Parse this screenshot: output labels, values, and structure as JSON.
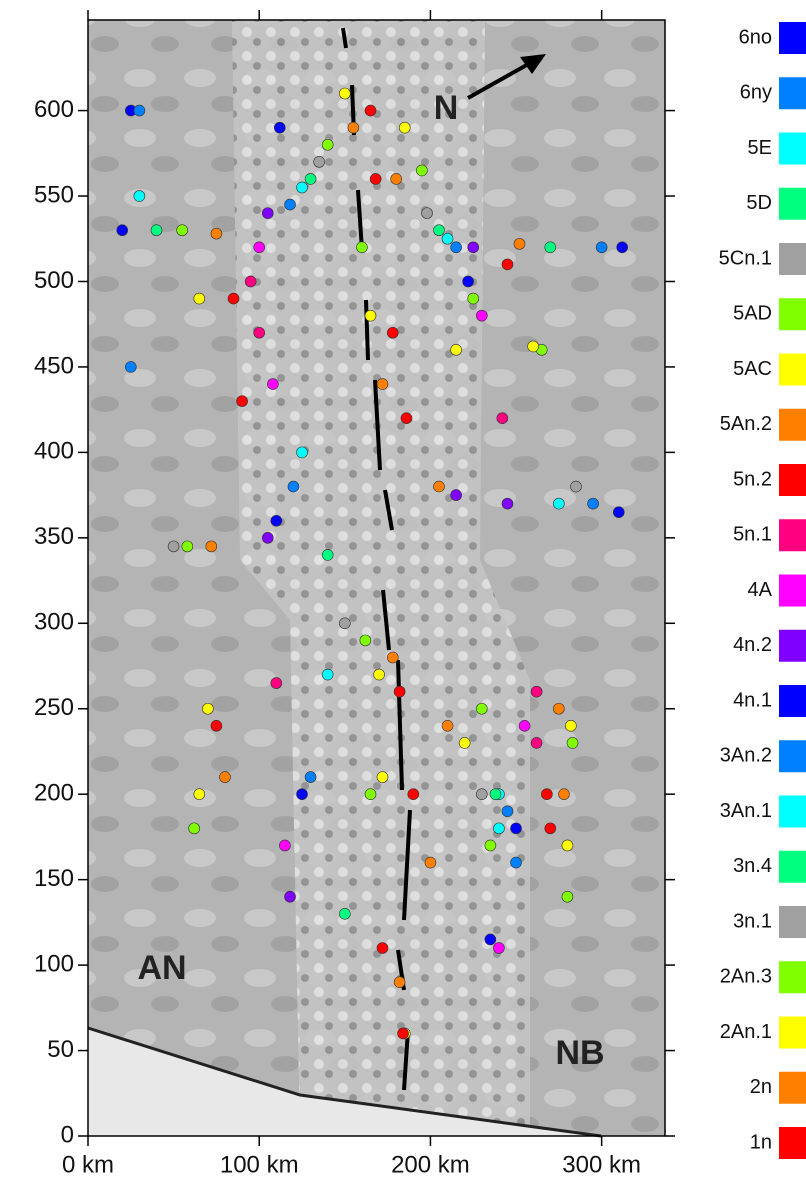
{
  "chart_data": {
    "type": "scatter",
    "xlim": [
      0,
      337
    ],
    "ylim": [
      0,
      653
    ],
    "xticks": [
      {
        "value": 0,
        "label": "0 km"
      },
      {
        "value": 100,
        "label": "100 km"
      },
      {
        "value": 200,
        "label": "200 km"
      },
      {
        "value": 300,
        "label": "300 km"
      }
    ],
    "yticks": [
      0,
      50,
      100,
      150,
      200,
      250,
      300,
      350,
      400,
      450,
      500,
      550,
      600
    ],
    "annotations": [
      "AN",
      "NB",
      "N"
    ],
    "series": [
      {
        "name": "6no",
        "color": "#0000ff",
        "x": [
          25,
          20,
          310,
          312
        ],
        "values": [
          600,
          530,
          365,
          520
        ]
      },
      {
        "name": "6ny",
        "color": "#0080ff",
        "x": [
          30,
          25,
          295,
          300
        ],
        "values": [
          600,
          450,
          370,
          520
        ]
      },
      {
        "name": "5E",
        "color": "#00ffff",
        "x": [
          30,
          275
        ],
        "values": [
          550,
          370
        ]
      },
      {
        "name": "5D",
        "color": "#00ff80",
        "x": [
          40,
          270
        ],
        "values": [
          530,
          520
        ]
      },
      {
        "name": "5Cn.1",
        "color": "#a0a0a0",
        "x": [
          50,
          285
        ],
        "values": [
          345,
          380
        ]
      },
      {
        "name": "5AD",
        "color": "#80ff00",
        "x": [
          55,
          265,
          58,
          283,
          62,
          280
        ],
        "values": [
          530,
          460,
          345,
          230,
          180,
          140
        ]
      },
      {
        "name": "5AC",
        "color": "#ffff00",
        "x": [
          65,
          260,
          70,
          282,
          65,
          280
        ],
        "values": [
          490,
          462,
          250,
          240,
          200,
          170
        ]
      },
      {
        "name": "5An.2",
        "color": "#ff8000",
        "x": [
          75,
          252,
          72,
          275,
          80,
          278
        ],
        "values": [
          528,
          522,
          345,
          250,
          210,
          200
        ]
      },
      {
        "name": "5n.2",
        "color": "#ff0000",
        "x": [
          85,
          245,
          90,
          268,
          75,
          270
        ],
        "values": [
          490,
          510,
          430,
          200,
          240,
          180
        ]
      },
      {
        "name": "5n.1",
        "color": "#ff0080",
        "x": [
          95,
          242,
          100,
          262,
          110,
          262
        ],
        "values": [
          500,
          420,
          470,
          230,
          265,
          260
        ]
      },
      {
        "name": "4A",
        "color": "#ff00ff",
        "x": [
          100,
          230,
          108,
          255,
          115,
          240
        ],
        "values": [
          520,
          480,
          440,
          240,
          170,
          110
        ]
      },
      {
        "name": "4n.2",
        "color": "#8000ff",
        "x": [
          105,
          225,
          105,
          245,
          118,
          215
        ],
        "values": [
          540,
          520,
          350,
          370,
          140,
          375
        ]
      },
      {
        "name": "4n.1",
        "color": "#0000ff",
        "x": [
          112,
          222,
          110,
          250,
          125,
          235
        ],
        "values": [
          590,
          500,
          360,
          180,
          200,
          115
        ]
      },
      {
        "name": "3An.2",
        "color": "#0080ff",
        "x": [
          118,
          215,
          120,
          245,
          130,
          250
        ],
        "values": [
          545,
          520,
          380,
          190,
          210,
          160
        ]
      },
      {
        "name": "3An.1",
        "color": "#00ffff",
        "x": [
          125,
          210,
          125,
          240,
          140,
          240
        ],
        "values": [
          555,
          525,
          400,
          200,
          270,
          180
        ]
      },
      {
        "name": "3n.4",
        "color": "#00ff80",
        "x": [
          130,
          205,
          140,
          238,
          150
        ],
        "values": [
          560,
          530,
          340,
          200,
          130
        ]
      },
      {
        "name": "3n.1",
        "color": "#a0a0a0",
        "x": [
          135,
          198,
          150,
          230
        ],
        "values": [
          570,
          540,
          300,
          200
        ]
      },
      {
        "name": "2An.3",
        "color": "#80ff00",
        "x": [
          140,
          195,
          160,
          225,
          162,
          230,
          165,
          235
        ],
        "values": [
          580,
          565,
          520,
          490,
          290,
          250,
          200,
          170
        ]
      },
      {
        "name": "2An.1",
        "color": "#ffff00",
        "x": [
          150,
          185,
          165,
          215,
          170,
          220,
          172,
          185
        ],
        "values": [
          610,
          590,
          480,
          460,
          270,
          230,
          210,
          60
        ]
      },
      {
        "name": "2n",
        "color": "#ff8000",
        "x": [
          155,
          180,
          172,
          205,
          178,
          210,
          200,
          182
        ],
        "values": [
          590,
          560,
          440,
          380,
          280,
          240,
          160,
          90
        ]
      },
      {
        "name": "1n",
        "color": "#ff0000",
        "x": [
          165,
          168,
          178,
          186,
          182,
          190,
          172,
          184
        ],
        "values": [
          600,
          560,
          470,
          420,
          260,
          200,
          110,
          60
        ]
      }
    ]
  }
}
